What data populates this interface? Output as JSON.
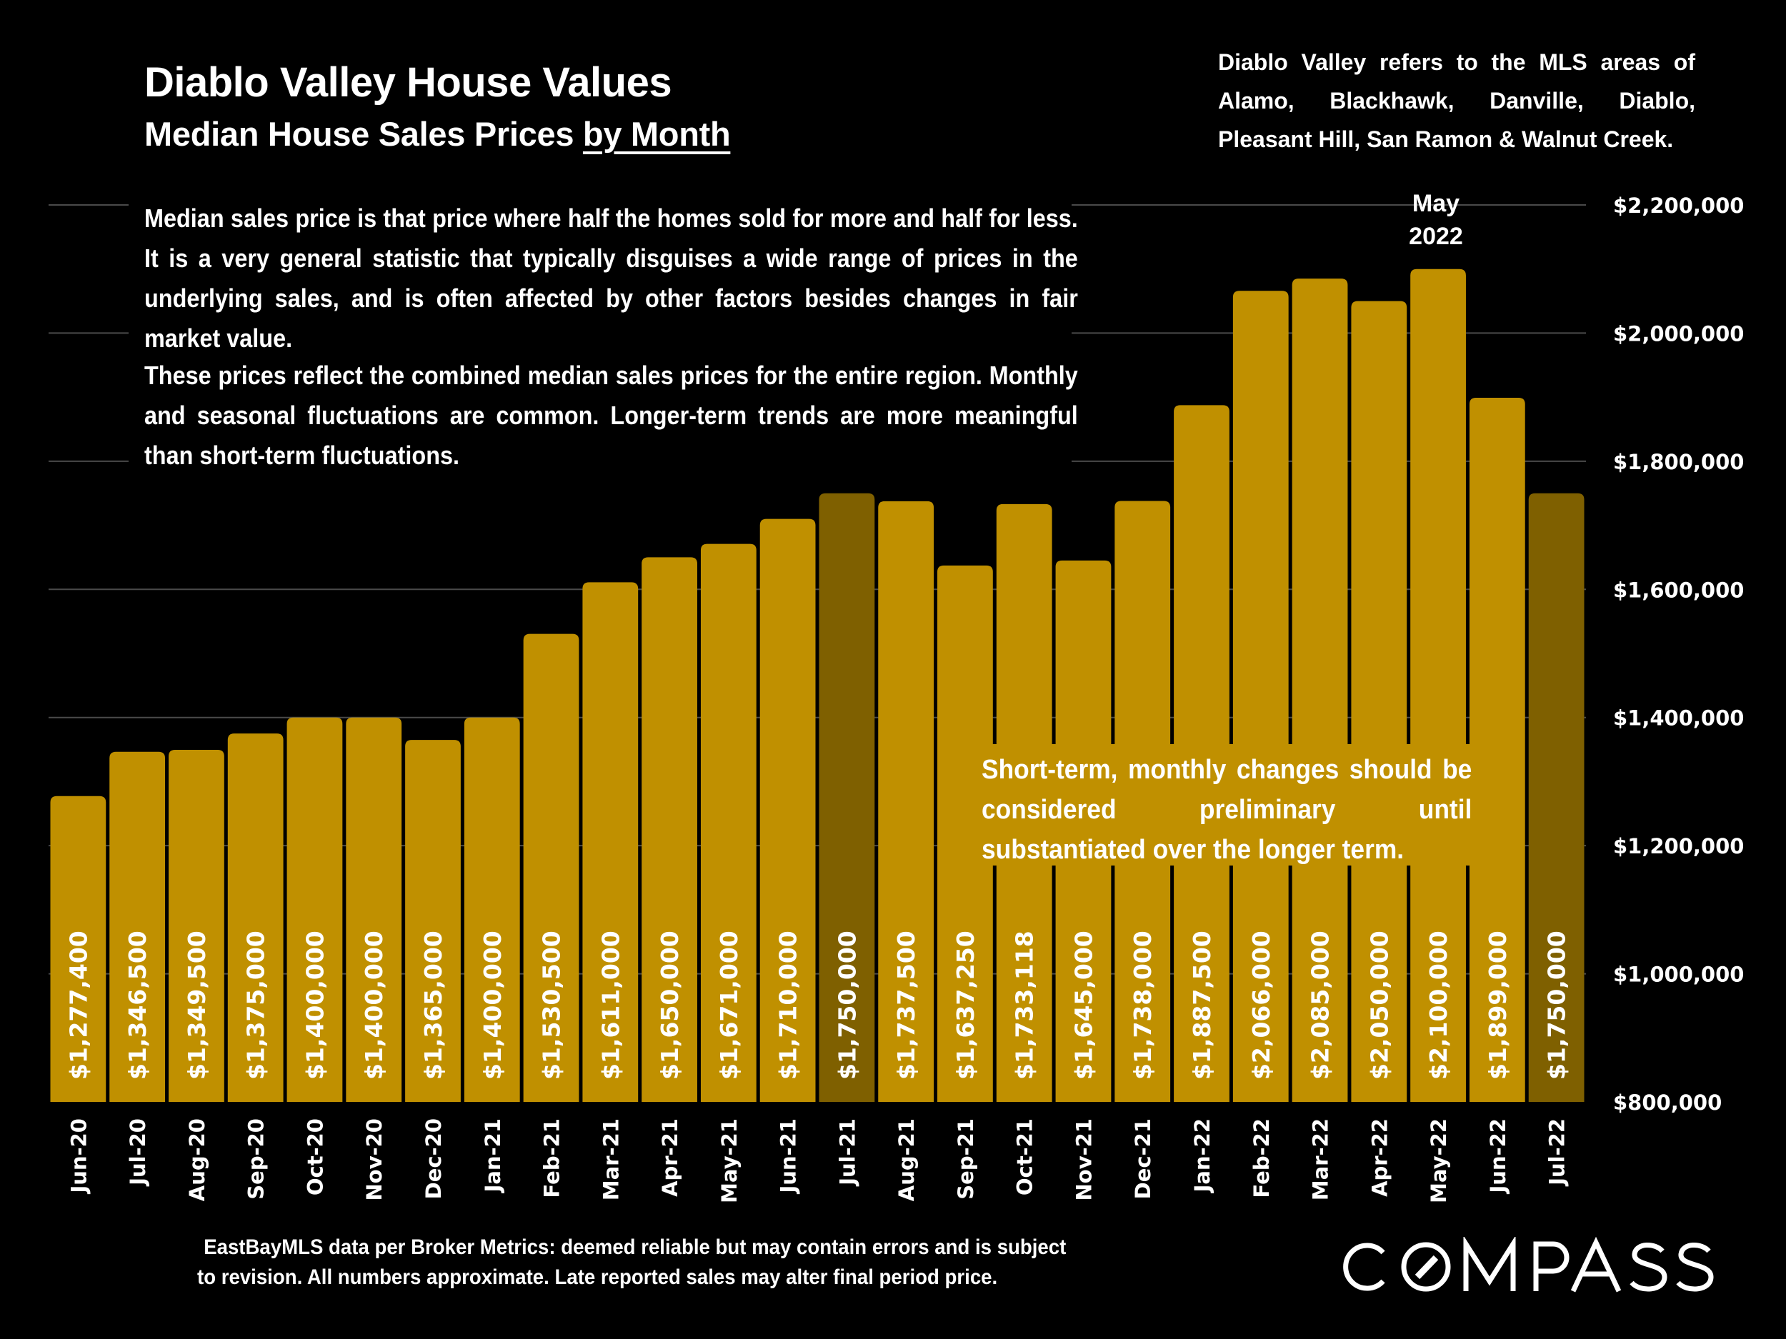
{
  "header": {
    "title": "Diablo Valley House Values",
    "subtitle_main": "Median House Sales Prices ",
    "subtitle_underlined": "by Month",
    "region_note": "Diablo Valley refers to the MLS areas of Alamo, Blackhawk, Danville, Diablo, Pleasant Hill, San Ramon & Walnut Creek."
  },
  "info": {
    "paragraph1": "Median sales price is that price where half the homes sold for more and half for less. It is a very general statistic that typically disguises a wide range of prices in the underlying sales, and is often affected by other factors besides changes in fair market value.",
    "paragraph2": "These prices reflect the combined median sales prices for the entire region.  Monthly and seasonal fluctuations are common. Longer-term trends are more meaningful than short-term fluctuations."
  },
  "annotations": {
    "peak_label_line1": "May",
    "peak_label_line2": "2022",
    "preliminary_note": "Short-term, monthly changes should be considered preliminary until substantiated over the longer term."
  },
  "footer": {
    "line1": "EastBayMLS data per Broker Metrics:  deemed reliable but may contain errors and is subject",
    "line2": "to revision. All numbers approximate. Late reported sales may alter final period price."
  },
  "logo": {
    "text": "COMPASS",
    "icon": "compass-logo-slashed-o"
  },
  "colors": {
    "background": "#000000",
    "bar": "#c09000",
    "bar_highlight": "#7f6000",
    "gridline": "#4a4a4a",
    "text": "#ffffff"
  },
  "chart_data": {
    "type": "bar",
    "title": "Diablo Valley House Values",
    "subtitle": "Median House Sales Prices by Month",
    "xlabel": "",
    "ylabel": "",
    "ylim": [
      800000,
      2200000
    ],
    "y_axis_position": "right",
    "yticks": [
      800000,
      1000000,
      1200000,
      1400000,
      1600000,
      1800000,
      2000000,
      2200000
    ],
    "ytick_labels": [
      "$800,000",
      "$1,000,000",
      "$1,200,000",
      "$1,400,000",
      "$1,600,000",
      "$1,800,000",
      "$2,000,000",
      "$2,200,000"
    ],
    "grid": true,
    "legend": "none",
    "categories": [
      "Jun-20",
      "Jul-20",
      "Aug-20",
      "Sep-20",
      "Oct-20",
      "Nov-20",
      "Dec-20",
      "Jan-21",
      "Feb-21",
      "Mar-21",
      "Apr-21",
      "May-21",
      "Jun-21",
      "Jul-21",
      "Aug-21",
      "Sep-21",
      "Oct-21",
      "Nov-21",
      "Dec-21",
      "Jan-22",
      "Feb-22",
      "Mar-22",
      "Apr-22",
      "May-22",
      "Jun-22",
      "Jul-22"
    ],
    "values": [
      1277400,
      1346500,
      1349500,
      1375000,
      1400000,
      1400000,
      1365000,
      1400000,
      1530500,
      1611000,
      1650000,
      1671000,
      1710000,
      1750000,
      1737500,
      1637250,
      1733118,
      1645000,
      1738000,
      1887500,
      2066000,
      2085000,
      2050000,
      2100000,
      1899000,
      1750000
    ],
    "value_labels": [
      "$1,277,400",
      "$1,346,500",
      "$1,349,500",
      "$1,375,000",
      "$1,400,000",
      "$1,400,000",
      "$1,365,000",
      "$1,400,000",
      "$1,530,500",
      "$1,611,000",
      "$1,650,000",
      "$1,671,000",
      "$1,710,000",
      "$1,750,000",
      "$1,737,500",
      "$1,637,250",
      "$1,733,118",
      "$1,645,000",
      "$1,738,000",
      "$1,887,500",
      "$2,066,000",
      "$2,085,000",
      "$2,050,000",
      "$2,100,000",
      "$1,899,000",
      "$1,750,000"
    ],
    "highlighted": [
      "Jul-21",
      "Jul-22"
    ]
  }
}
